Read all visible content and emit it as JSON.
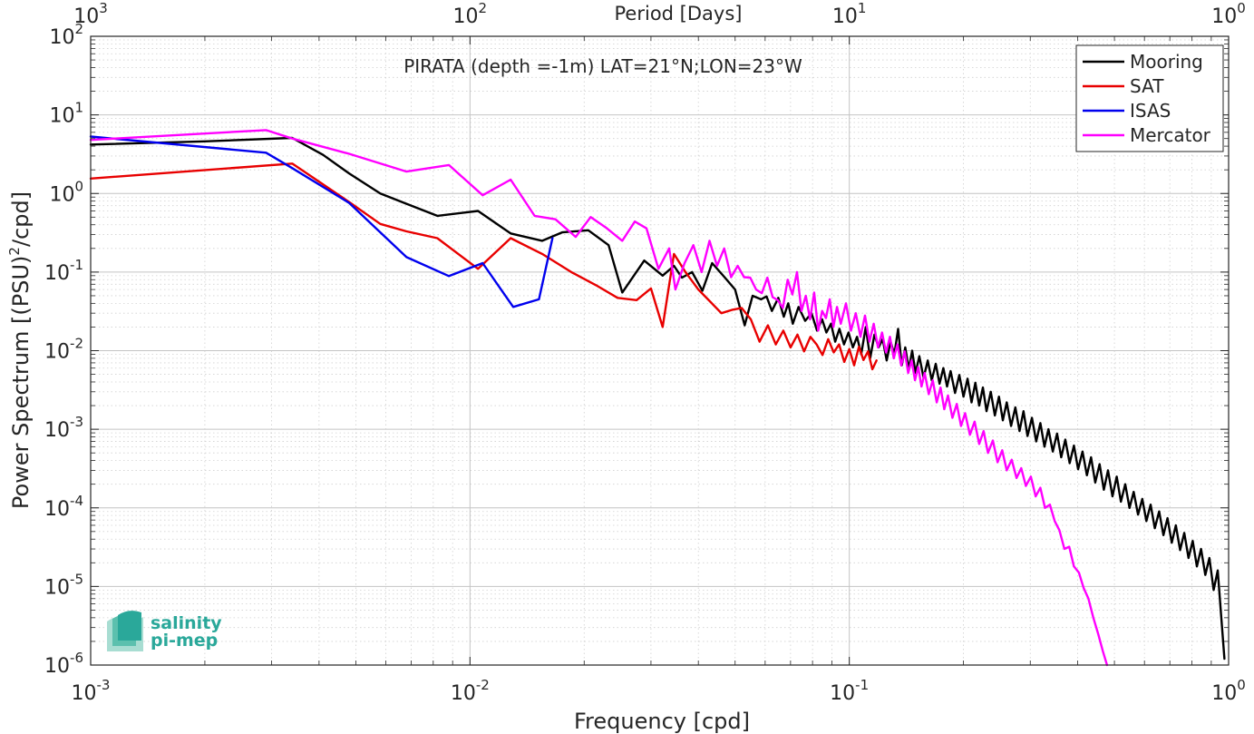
{
  "chart_data": {
    "type": "line",
    "title": "PIRATA (depth =-1m) LAT=21°N;LON=23°W",
    "xlabel": "Frequency [cpd]",
    "ylabel": "Power Spectrum [(PSU)²/cpd]",
    "ylabel_parts": {
      "before": "Power Spectrum [(PSU)",
      "sup": "2",
      "after": "/cpd]"
    },
    "top_xlabel": "Period [Days]",
    "xscale": "log",
    "yscale": "log",
    "xlim": [
      0.001,
      1
    ],
    "ylim": [
      1e-06,
      100
    ],
    "grid": true,
    "minor_grid": true,
    "legend_position": "top-right",
    "x_ticks": [
      {
        "value": 0.001,
        "base": "10",
        "exp": "-3"
      },
      {
        "value": 0.01,
        "base": "10",
        "exp": "-2"
      },
      {
        "value": 0.1,
        "base": "10",
        "exp": "-1"
      },
      {
        "value": 1,
        "base": "10",
        "exp": "0"
      }
    ],
    "y_ticks": [
      {
        "value": 1e-06,
        "base": "10",
        "exp": "-6"
      },
      {
        "value": 1e-05,
        "base": "10",
        "exp": "-5"
      },
      {
        "value": 0.0001,
        "base": "10",
        "exp": "-4"
      },
      {
        "value": 0.001,
        "base": "10",
        "exp": "-3"
      },
      {
        "value": 0.01,
        "base": "10",
        "exp": "-2"
      },
      {
        "value": 0.1,
        "base": "10",
        "exp": "-1"
      },
      {
        "value": 1,
        "base": "10",
        "exp": "0"
      },
      {
        "value": 10,
        "base": "10",
        "exp": "1"
      },
      {
        "value": 100,
        "base": "10",
        "exp": "2"
      }
    ],
    "top_ticks": [
      {
        "freq": 0.001,
        "base": "10",
        "exp": "3"
      },
      {
        "freq": 0.01,
        "base": "10",
        "exp": "2"
      },
      {
        "freq": 0.1,
        "base": "10",
        "exp": "1"
      },
      {
        "freq": 1,
        "base": "10",
        "exp": "0"
      }
    ],
    "series": [
      {
        "name": "Mooring",
        "color": "#000000",
        "x": [
          0.001,
          0.002,
          0.0034,
          0.0041,
          0.0048,
          0.0058,
          0.0068,
          0.0082,
          0.0105,
          0.0128,
          0.0155,
          0.0175,
          0.0205,
          0.0232,
          0.0252,
          0.0288,
          0.0322,
          0.0345,
          0.0362,
          0.0385,
          0.041,
          0.0435,
          0.047,
          0.05,
          0.053,
          0.0556,
          0.0585,
          0.0605,
          0.0625,
          0.065,
          0.0672,
          0.069,
          0.071,
          0.0735,
          0.0765,
          0.0795,
          0.0822,
          0.0848,
          0.087,
          0.0895,
          0.0918,
          0.0942,
          0.0968,
          0.0995,
          0.1022,
          0.1048,
          0.1075,
          0.1105,
          0.1135,
          0.1165,
          0.1195,
          0.1225,
          0.1255,
          0.1285,
          0.1315,
          0.1345,
          0.1375,
          0.1405,
          0.1435,
          0.1465,
          0.1495,
          0.153,
          0.157,
          0.161,
          0.165,
          0.169,
          0.173,
          0.177,
          0.181,
          0.185,
          0.19,
          0.195,
          0.2,
          0.205,
          0.21,
          0.215,
          0.22,
          0.225,
          0.23,
          0.236,
          0.242,
          0.248,
          0.254,
          0.26,
          0.267,
          0.274,
          0.281,
          0.288,
          0.295,
          0.303,
          0.311,
          0.319,
          0.327,
          0.335,
          0.344,
          0.353,
          0.362,
          0.371,
          0.381,
          0.391,
          0.401,
          0.412,
          0.423,
          0.434,
          0.445,
          0.457,
          0.469,
          0.481,
          0.494,
          0.507,
          0.52,
          0.534,
          0.548,
          0.562,
          0.577,
          0.592,
          0.607,
          0.623,
          0.639,
          0.656,
          0.673,
          0.69,
          0.708,
          0.726,
          0.745,
          0.764,
          0.784,
          0.804,
          0.825,
          0.846,
          0.868,
          0.89,
          0.913,
          0.936,
          0.955,
          0.975
        ],
        "y": [
          4.2,
          4.6,
          5.1,
          3.1,
          1.8,
          1.0,
          0.74,
          0.52,
          0.6,
          0.31,
          0.25,
          0.32,
          0.34,
          0.22,
          0.055,
          0.14,
          0.09,
          0.12,
          0.085,
          0.1,
          0.058,
          0.13,
          0.085,
          0.06,
          0.021,
          0.05,
          0.045,
          0.049,
          0.032,
          0.047,
          0.027,
          0.04,
          0.022,
          0.036,
          0.024,
          0.03,
          0.018,
          0.025,
          0.017,
          0.022,
          0.013,
          0.019,
          0.012,
          0.017,
          0.011,
          0.015,
          0.009,
          0.02,
          0.008,
          0.016,
          0.011,
          0.014,
          0.0075,
          0.013,
          0.009,
          0.019,
          0.0065,
          0.011,
          0.0058,
          0.01,
          0.0052,
          0.0085,
          0.0045,
          0.0075,
          0.0042,
          0.0068,
          0.0038,
          0.006,
          0.0035,
          0.0055,
          0.0029,
          0.0049,
          0.0026,
          0.0044,
          0.0022,
          0.0039,
          0.002,
          0.0034,
          0.0017,
          0.003,
          0.0015,
          0.0026,
          0.0013,
          0.0022,
          0.0011,
          0.0019,
          0.00095,
          0.0017,
          0.00082,
          0.0014,
          0.0007,
          0.0012,
          0.0006,
          0.001,
          0.00052,
          0.00088,
          0.00044,
          0.00074,
          0.00037,
          0.00062,
          0.00031,
          0.00052,
          0.00026,
          0.00044,
          0.00021,
          0.00036,
          0.00017,
          0.0003,
          0.00014,
          0.00025,
          0.00012,
          0.0002,
          0.0001,
          0.00016,
          8.2e-05,
          0.00013,
          6.8e-05,
          0.00011,
          5.5e-05,
          9e-05,
          4.5e-05,
          7.4e-05,
          3.6e-05,
          6e-05,
          2.9e-05,
          4.8e-05,
          2.3e-05,
          3.8e-05,
          1.8e-05,
          3e-05,
          1.4e-05,
          2.3e-05,
          9e-06,
          1.6e-05,
          4.5e-06,
          1.2e-06
        ]
      },
      {
        "name": "SAT",
        "color": "#e80000",
        "x": [
          0.001,
          0.0034,
          0.0048,
          0.0058,
          0.0068,
          0.0082,
          0.0105,
          0.0128,
          0.0155,
          0.0185,
          0.0215,
          0.0245,
          0.0275,
          0.03,
          0.0322,
          0.0345,
          0.037,
          0.04,
          0.043,
          0.046,
          0.049,
          0.052,
          0.055,
          0.058,
          0.061,
          0.064,
          0.067,
          0.07,
          0.073,
          0.076,
          0.079,
          0.082,
          0.085,
          0.088,
          0.091,
          0.094,
          0.097,
          0.1,
          0.103,
          0.106,
          0.109,
          0.112,
          0.115,
          0.118
        ],
        "y": [
          1.55,
          2.4,
          0.78,
          0.41,
          0.33,
          0.27,
          0.11,
          0.27,
          0.17,
          0.1,
          0.068,
          0.047,
          0.044,
          0.062,
          0.02,
          0.17,
          0.1,
          0.06,
          0.042,
          0.03,
          0.033,
          0.035,
          0.025,
          0.013,
          0.021,
          0.012,
          0.018,
          0.011,
          0.016,
          0.0098,
          0.015,
          0.012,
          0.0088,
          0.014,
          0.0095,
          0.012,
          0.0072,
          0.0105,
          0.0065,
          0.0112,
          0.0076,
          0.0098,
          0.0058,
          0.0075
        ]
      },
      {
        "name": "ISAS",
        "color": "#0000ee",
        "x": [
          0.001,
          0.0029,
          0.0034,
          0.0048,
          0.0068,
          0.0088,
          0.0108,
          0.013,
          0.0152,
          0.0165
        ],
        "y": [
          5.3,
          3.3,
          2.1,
          0.76,
          0.155,
          0.089,
          0.13,
          0.036,
          0.045,
          0.27
        ]
      },
      {
        "name": "Mercator",
        "color": "#ff00ff",
        "x": [
          0.001,
          0.0029,
          0.0034,
          0.0048,
          0.0068,
          0.0088,
          0.0108,
          0.0128,
          0.0148,
          0.0168,
          0.019,
          0.0208,
          0.0228,
          0.0252,
          0.0272,
          0.0292,
          0.0314,
          0.0335,
          0.0348,
          0.0368,
          0.0388,
          0.0408,
          0.0428,
          0.0448,
          0.0468,
          0.0488,
          0.0508,
          0.0528,
          0.0548,
          0.0568,
          0.0588,
          0.0608,
          0.0628,
          0.0648,
          0.0668,
          0.0688,
          0.0708,
          0.0728,
          0.0748,
          0.0768,
          0.0788,
          0.0808,
          0.0828,
          0.0848,
          0.0868,
          0.0888,
          0.0908,
          0.0928,
          0.095,
          0.098,
          0.101,
          0.104,
          0.107,
          0.11,
          0.113,
          0.116,
          0.119,
          0.122,
          0.125,
          0.128,
          0.131,
          0.134,
          0.137,
          0.14,
          0.143,
          0.146,
          0.149,
          0.152,
          0.155,
          0.158,
          0.162,
          0.166,
          0.17,
          0.174,
          0.178,
          0.182,
          0.187,
          0.192,
          0.197,
          0.202,
          0.208,
          0.214,
          0.22,
          0.226,
          0.232,
          0.239,
          0.246,
          0.253,
          0.26,
          0.268,
          0.276,
          0.284,
          0.292,
          0.301,
          0.31,
          0.319,
          0.328,
          0.338,
          0.348,
          0.358,
          0.369,
          0.38,
          0.391,
          0.403,
          0.415,
          0.427,
          0.44,
          0.453,
          0.466,
          0.478
        ],
        "y": [
          4.8,
          6.4,
          5.0,
          3.2,
          1.9,
          2.3,
          0.95,
          1.5,
          0.52,
          0.47,
          0.28,
          0.5,
          0.37,
          0.25,
          0.44,
          0.36,
          0.11,
          0.2,
          0.06,
          0.13,
          0.22,
          0.1,
          0.25,
          0.12,
          0.2,
          0.086,
          0.12,
          0.086,
          0.085,
          0.06,
          0.054,
          0.085,
          0.048,
          0.044,
          0.035,
          0.08,
          0.052,
          0.1,
          0.032,
          0.05,
          0.025,
          0.055,
          0.018,
          0.032,
          0.026,
          0.045,
          0.02,
          0.036,
          0.022,
          0.04,
          0.018,
          0.03,
          0.015,
          0.028,
          0.013,
          0.022,
          0.011,
          0.017,
          0.0095,
          0.015,
          0.008,
          0.012,
          0.0065,
          0.0098,
          0.0052,
          0.0075,
          0.0042,
          0.0062,
          0.0035,
          0.0052,
          0.0028,
          0.0042,
          0.0022,
          0.0034,
          0.0018,
          0.0027,
          0.0014,
          0.0021,
          0.0011,
          0.0016,
          0.00085,
          0.00125,
          0.00065,
          0.00095,
          0.0005,
          0.00072,
          0.00038,
          0.00054,
          0.0003,
          0.00041,
          0.00024,
          0.00032,
          0.00019,
          0.00025,
          0.00014,
          0.00018,
          0.0001,
          0.00011,
          6.8e-05,
          5.2e-05,
          3e-05,
          3.2e-05,
          1.8e-05,
          1.5e-05,
          9.5e-06,
          7e-06,
          4e-06,
          2.5e-06,
          1.5e-06,
          1e-06
        ]
      }
    ]
  },
  "logo": {
    "line1": "salinity",
    "line2": "pi-mep"
  }
}
